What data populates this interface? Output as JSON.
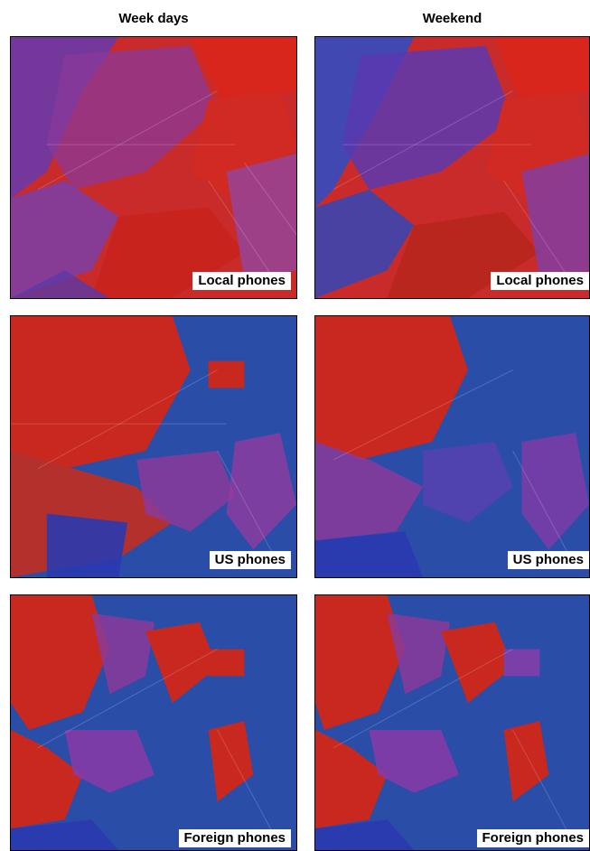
{
  "columns": {
    "left_title": "Week days",
    "right_title": "Weekend"
  },
  "panels": [
    {
      "row": "local",
      "column": "weekdays",
      "label": "Local phones"
    },
    {
      "row": "local",
      "column": "weekend",
      "label": "Local phones"
    },
    {
      "row": "us",
      "column": "weekdays",
      "label": "US phones"
    },
    {
      "row": "us",
      "column": "weekend",
      "label": "US phones"
    },
    {
      "row": "foreign",
      "column": "weekdays",
      "label": "Foreign phones"
    },
    {
      "row": "foreign",
      "column": "weekend",
      "label": "Foreign phones"
    }
  ],
  "colors": {
    "red": "#d8261c",
    "blue": "#2a4ea8",
    "purple": "#7a3fa8",
    "deep_blue": "#1f3f9a"
  }
}
